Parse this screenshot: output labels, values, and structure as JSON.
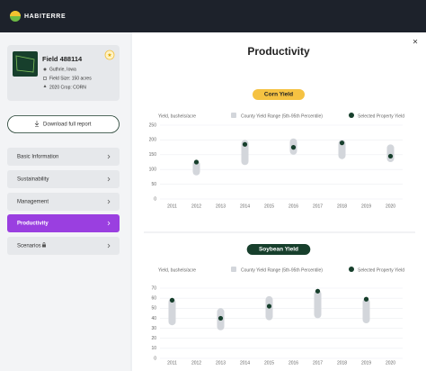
{
  "header": {
    "logo": "HABITERRE"
  },
  "sidebar": {
    "field": {
      "name": "Field 488114",
      "location": "Guthrie, Iowa",
      "size": "Field Size: 150 acres",
      "crop": "2020 Crop: CORN"
    },
    "download": "Download full report",
    "nav": [
      "Basic Information",
      "Sustainability",
      "Management",
      "Productivity",
      "Scenarios"
    ],
    "active": 3
  },
  "main": {
    "title": "Productivity"
  },
  "chart_data": [
    {
      "type": "range",
      "title": "Corn Yield",
      "title_background": "#f5c242",
      "title_color": "#222222",
      "y_label": "Yield, bushels/acre",
      "categories": [
        "2011",
        "2012",
        "2013",
        "2014",
        "2015",
        "2016",
        "2017",
        "2018",
        "2019",
        "2020"
      ],
      "ylim": [
        0,
        250
      ],
      "yticks": [
        0,
        50,
        100,
        150,
        200,
        250
      ],
      "grid": true,
      "series": [
        {
          "name": "County Yield Range (5th-95th Percentile)",
          "color": "#d3d6db",
          "low": [
            null,
            80,
            null,
            115,
            null,
            150,
            null,
            135,
            null,
            125
          ],
          "high": [
            null,
            130,
            null,
            200,
            null,
            205,
            null,
            200,
            null,
            185
          ]
        },
        {
          "name": "Selected Property Yield",
          "color": "#173f2c",
          "values": [
            null,
            125,
            null,
            185,
            null,
            175,
            null,
            190,
            null,
            145
          ]
        }
      ]
    },
    {
      "type": "range",
      "title": "Soybean Yield",
      "title_background": "#173f2c",
      "title_color": "#ffffff",
      "y_label": "Yield, bushels/acre",
      "categories": [
        "2011",
        "2012",
        "2013",
        "2014",
        "2015",
        "2016",
        "2017",
        "2018",
        "2019",
        "2020"
      ],
      "ylim": [
        0,
        70
      ],
      "yticks": [
        0,
        10,
        20,
        30,
        40,
        50,
        60,
        70
      ],
      "grid": true,
      "series": [
        {
          "name": "County Yield Range (5th-95th Percentile)",
          "color": "#d3d6db",
          "low": [
            33,
            null,
            28,
            null,
            38,
            null,
            40,
            null,
            35,
            null
          ],
          "high": [
            60,
            null,
            50,
            null,
            62,
            null,
            68,
            null,
            60,
            null
          ]
        },
        {
          "name": "Selected Property Yield",
          "color": "#173f2c",
          "values": [
            58,
            null,
            40,
            null,
            52,
            null,
            67,
            null,
            59,
            null
          ]
        }
      ]
    }
  ]
}
